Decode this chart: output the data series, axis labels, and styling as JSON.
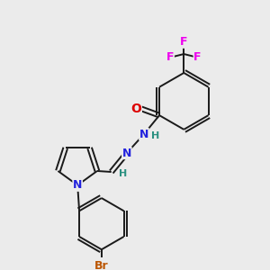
{
  "bg_color": "#ebebeb",
  "bond_color": "#1a1a1a",
  "atom_colors": {
    "O": "#dd0000",
    "N": "#2222dd",
    "F": "#ee00ee",
    "Br": "#bb5500",
    "H_teal": "#2a9080",
    "C": "#1a1a1a"
  },
  "font_size": 9,
  "lw": 1.4,
  "figsize": [
    3.0,
    3.0
  ],
  "dpi": 100
}
